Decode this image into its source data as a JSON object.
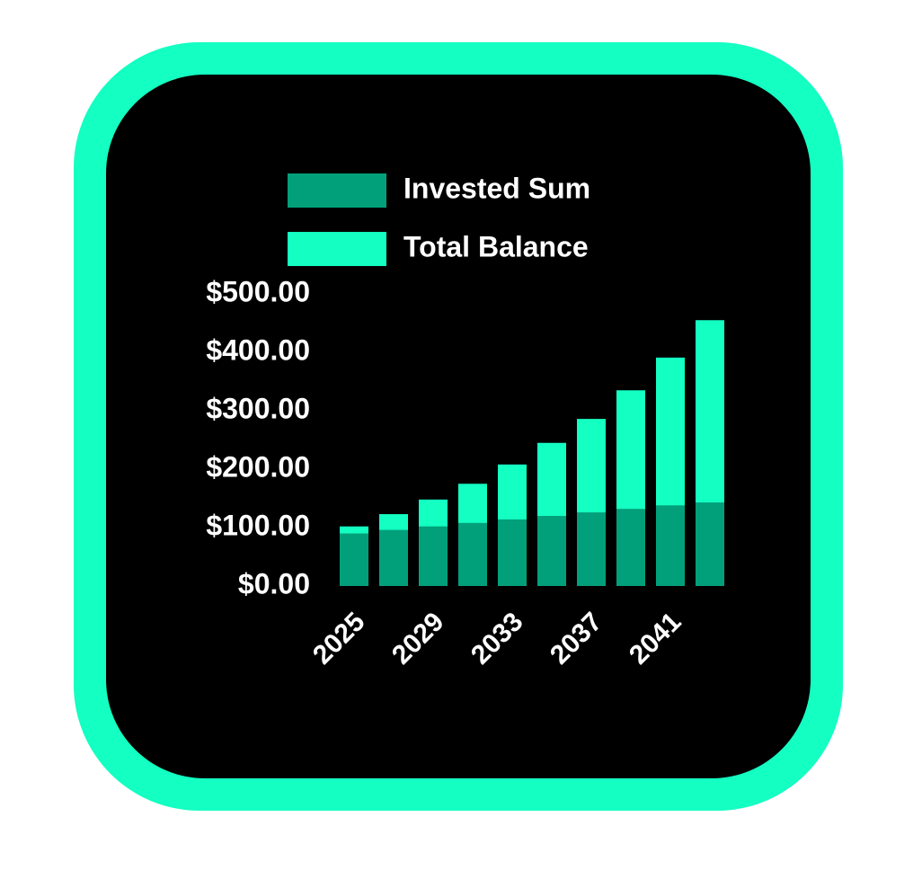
{
  "chart_data": {
    "type": "bar",
    "categories": [
      "2025",
      null,
      "2029",
      null,
      "2033",
      null,
      "2037",
      null,
      "2041",
      null
    ],
    "series": [
      {
        "name": "Total Balance",
        "color": "#14ffc2",
        "values": [
          102,
          123,
          148,
          175,
          208,
          245,
          286,
          335,
          391,
          455
        ]
      },
      {
        "name": "Invested Sum",
        "color": "#02a07a",
        "values": [
          90,
          96,
          102,
          108,
          114,
          120,
          126,
          132,
          138,
          143
        ]
      }
    ],
    "legend_order": [
      "Invested Sum",
      "Total Balance"
    ],
    "ylim": [
      0,
      500
    ],
    "yticks": [
      {
        "value": 0,
        "label": "$0.00"
      },
      {
        "value": 100,
        "label": "$100.00"
      },
      {
        "value": 200,
        "label": "$200.00"
      },
      {
        "value": 300,
        "label": "$300.00"
      },
      {
        "value": 400,
        "label": "$400.00"
      },
      {
        "value": 500,
        "label": "$500.00"
      }
    ],
    "grid": false
  }
}
